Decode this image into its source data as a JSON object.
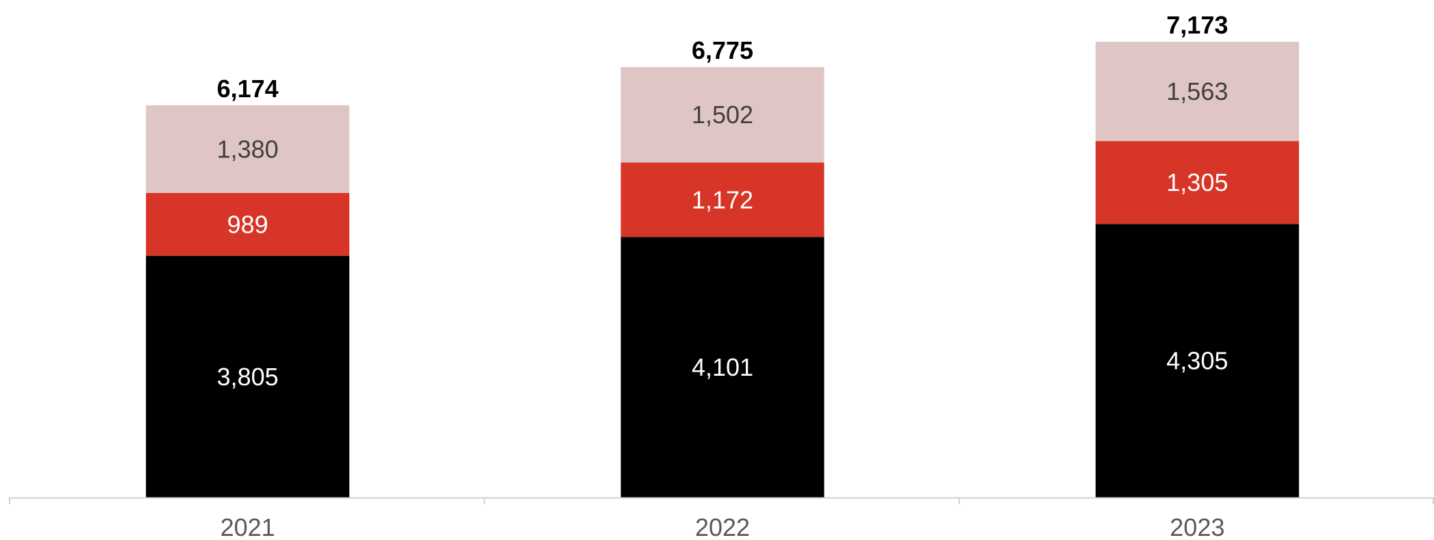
{
  "chart_data": {
    "type": "bar",
    "stacked": true,
    "categories": [
      "2021",
      "2022",
      "2023"
    ],
    "series": [
      {
        "values": [
          3805,
          4101,
          4305
        ],
        "color": "#000000",
        "label_color": "#ffffff"
      },
      {
        "values": [
          989,
          1172,
          1305
        ],
        "color": "#d73527",
        "label_color": "#ffffff"
      },
      {
        "values": [
          1380,
          1502,
          1563
        ],
        "color": "#e0c5c5",
        "label_color": "#404040"
      }
    ],
    "totals": [
      6174,
      6775,
      7173
    ],
    "value_labels": [
      [
        "3,805",
        "4,101",
        "4,305"
      ],
      [
        "989",
        "1,172",
        "1,305"
      ],
      [
        "1,380",
        "1,502",
        "1,563"
      ]
    ],
    "total_labels": [
      "6,174",
      "6,775",
      "7,173"
    ],
    "ylim": [
      0,
      7173
    ],
    "title": "",
    "xlabel": "",
    "ylabel": "",
    "grid": false,
    "axis_color": "#d0d0d0"
  }
}
